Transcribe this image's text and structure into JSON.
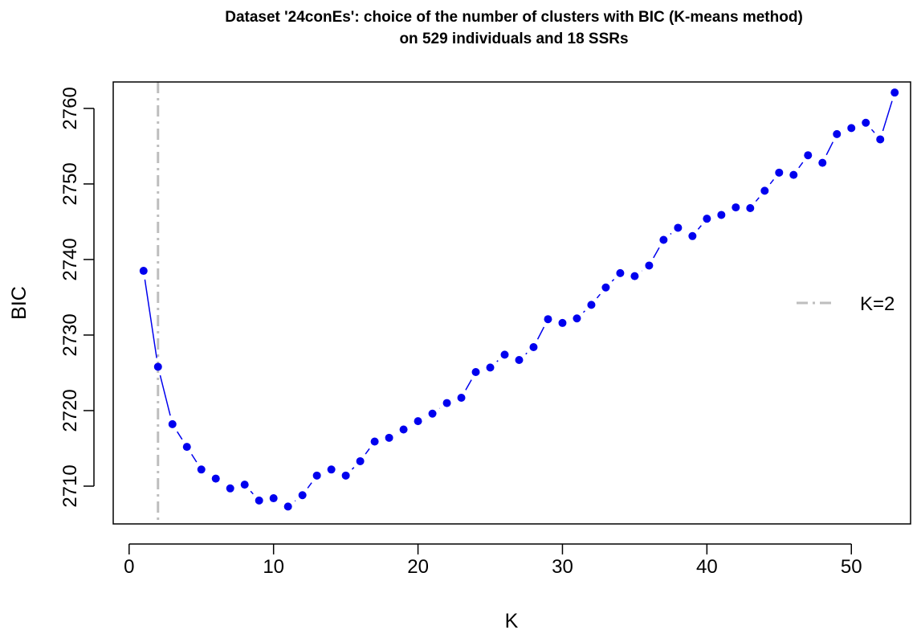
{
  "chart_data": {
    "type": "line",
    "title": "Dataset '24conEs': choice of the number of clusters with BIC (K-means method)",
    "subtitle": "on 529 individuals and 18 SSRs",
    "xlabel": "K",
    "ylabel": "BIC",
    "xlim": [
      -1.1,
      54.1
    ],
    "ylim": [
      2705,
      2763.5
    ],
    "x_ticks": [
      0,
      10,
      20,
      30,
      40,
      50
    ],
    "y_ticks": [
      2710,
      2720,
      2730,
      2740,
      2750,
      2760
    ],
    "grid": false,
    "legend_position": "right",
    "series": [
      {
        "color": "#0000ee",
        "x": [
          1,
          2,
          3,
          4,
          5,
          6,
          7,
          8,
          9,
          10,
          11,
          12,
          13,
          14,
          15,
          16,
          17,
          18,
          19,
          20,
          21,
          22,
          23,
          24,
          25,
          26,
          27,
          28,
          29,
          30,
          31,
          32,
          33,
          34,
          35,
          36,
          37,
          38,
          39,
          40,
          41,
          42,
          43,
          44,
          45,
          46,
          47,
          48,
          49,
          50,
          51,
          52,
          53
        ],
        "values": [
          2738.5,
          2725.8,
          2718.2,
          2715.2,
          2712.2,
          2711.0,
          2709.7,
          2710.2,
          2708.1,
          2708.4,
          2707.3,
          2708.8,
          2711.4,
          2712.2,
          2711.4,
          2713.3,
          2715.9,
          2716.4,
          2717.5,
          2718.6,
          2719.6,
          2721.0,
          2721.7,
          2725.1,
          2725.7,
          2727.4,
          2726.7,
          2728.4,
          2732.1,
          2731.6,
          2732.2,
          2734.0,
          2736.3,
          2738.2,
          2737.8,
          2739.2,
          2742.6,
          2744.2,
          2743.1,
          2745.4,
          2745.9,
          2746.9,
          2746.8,
          2749.1,
          2751.5,
          2751.2,
          2753.8,
          2752.8,
          2756.6,
          2757.4,
          2758.1,
          2755.9,
          2762.1
        ]
      }
    ],
    "vline": {
      "x": 2,
      "color": "#bebebe"
    },
    "legend": [
      {
        "label": "K=2",
        "color": "#bebebe",
        "style": "dashdot"
      }
    ]
  }
}
